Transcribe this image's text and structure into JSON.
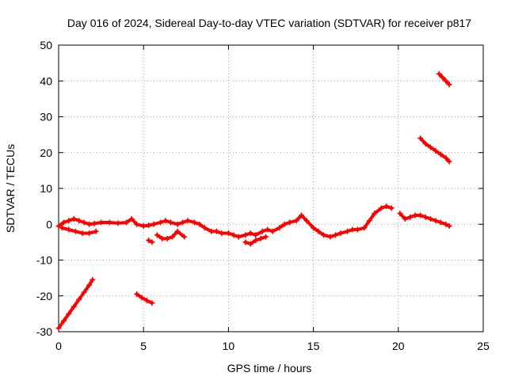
{
  "chart_data": {
    "type": "scatter",
    "title": "Day 016 of 2024, Sidereal Day-to-day VTEC variation (SDTVAR) for receiver p817",
    "xlabel": "GPS time / hours",
    "ylabel": "SDTVAR / TECUs",
    "xlim": [
      0,
      25
    ],
    "ylim": [
      -30,
      50
    ],
    "xticks": [
      0,
      5,
      10,
      15,
      20,
      25
    ],
    "yticks": [
      -30,
      -20,
      -10,
      0,
      10,
      20,
      30,
      40,
      50
    ],
    "grid": true,
    "marker": "plus",
    "color": "#ff0000",
    "series": [
      {
        "name": "SDTVAR",
        "segments": [
          {
            "x": [
              0.0,
              0.3,
              0.6,
              0.9,
              1.2,
              1.5,
              1.8,
              2.0
            ],
            "y": [
              -29.0,
              -27.0,
              -25.0,
              -23.0,
              -21.0,
              -19.0,
              -17.0,
              -15.5
            ]
          },
          {
            "x": [
              4.6,
              4.9,
              5.2,
              5.5
            ],
            "y": [
              -19.5,
              -20.5,
              -21.3,
              -22.0
            ]
          },
          {
            "x": [
              0.0,
              0.3,
              0.6,
              0.9,
              1.2,
              1.5,
              1.8,
              2.1,
              2.5,
              3.0,
              3.5,
              4.0,
              4.3,
              4.6,
              5.0,
              5.3,
              5.6,
              6.0,
              6.3,
              6.6,
              7.0,
              7.3,
              7.6,
              8.0,
              8.3,
              8.6,
              9.0,
              9.3,
              9.6,
              10.0,
              10.3,
              10.6,
              11.0,
              11.3,
              11.6,
              12.0,
              12.3,
              12.6,
              13.0,
              13.3,
              13.6,
              14.0,
              14.3,
              14.6,
              15.0,
              15.3,
              15.6,
              16.0,
              16.3,
              16.6,
              17.0,
              17.3,
              17.6,
              18.0,
              18.3,
              18.6,
              19.0,
              19.3,
              19.6
            ],
            "y": [
              -0.5,
              0.5,
              1.0,
              1.5,
              1.0,
              0.5,
              0.0,
              0.2,
              0.5,
              0.5,
              0.3,
              0.5,
              1.5,
              0.0,
              -0.5,
              -0.3,
              0.0,
              0.5,
              1.0,
              0.5,
              0.0,
              0.5,
              1.0,
              0.5,
              0.0,
              -1.0,
              -2.0,
              -2.0,
              -2.5,
              -2.5,
              -3.0,
              -3.5,
              -3.0,
              -2.5,
              -3.0,
              -2.0,
              -1.5,
              -2.0,
              -1.0,
              0.0,
              0.5,
              1.0,
              2.5,
              1.0,
              -1.0,
              -2.0,
              -3.0,
              -3.5,
              -3.0,
              -2.5,
              -2.0,
              -1.5,
              -1.5,
              -1.0,
              1.0,
              3.0,
              4.5,
              5.0,
              4.5
            ]
          },
          {
            "x": [
              0.2,
              0.6,
              1.0,
              1.4,
              1.8,
              2.2
            ],
            "y": [
              -1.0,
              -1.5,
              -2.0,
              -2.5,
              -2.5,
              -2.0
            ]
          },
          {
            "x": [
              5.8,
              6.1,
              6.4,
              6.7,
              7.0,
              7.4
            ],
            "y": [
              -3.0,
              -4.0,
              -4.0,
              -3.5,
              -2.0,
              -3.5
            ]
          },
          {
            "x": [
              5.3,
              5.5
            ],
            "y": [
              -4.5,
              -5.0
            ]
          },
          {
            "x": [
              11.0,
              11.3,
              11.6,
              11.9,
              12.2
            ],
            "y": [
              -5.0,
              -5.5,
              -4.5,
              -4.0,
              -3.5
            ]
          },
          {
            "x": [
              20.1,
              20.4,
              20.7,
              21.0,
              21.3,
              21.6,
              21.9,
              22.2,
              22.5,
              22.8,
              23.0
            ],
            "y": [
              3.0,
              1.5,
              2.0,
              2.5,
              2.5,
              2.0,
              1.5,
              1.0,
              0.5,
              0.0,
              -0.5
            ]
          },
          {
            "x": [
              21.3,
              21.6,
              21.9,
              22.2,
              22.5,
              22.8,
              23.0
            ],
            "y": [
              24.0,
              22.5,
              21.5,
              20.5,
              19.5,
              18.5,
              17.5
            ]
          },
          {
            "x": [
              22.4,
              22.6,
              22.8,
              23.0
            ],
            "y": [
              42.0,
              41.0,
              40.0,
              39.0
            ]
          }
        ]
      }
    ]
  }
}
